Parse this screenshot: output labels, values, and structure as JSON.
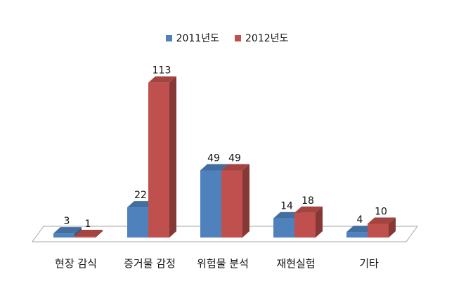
{
  "chart_data": {
    "type": "bar",
    "categories": [
      "현장 감식",
      "증거물 감정",
      "위험물 분석",
      "재현실험",
      "기타"
    ],
    "series": [
      {
        "name": "2011년도",
        "values": [
          3,
          22,
          49,
          14,
          4
        ],
        "color": "#4f81bd"
      },
      {
        "name": "2012년도",
        "values": [
          1,
          113,
          49,
          18,
          10
        ],
        "color": "#c0504d"
      }
    ],
    "title": "",
    "xlabel": "",
    "ylabel": "",
    "ylim": [
      0,
      120
    ],
    "grid": false,
    "legend": "top-center",
    "style": "3d-column"
  }
}
